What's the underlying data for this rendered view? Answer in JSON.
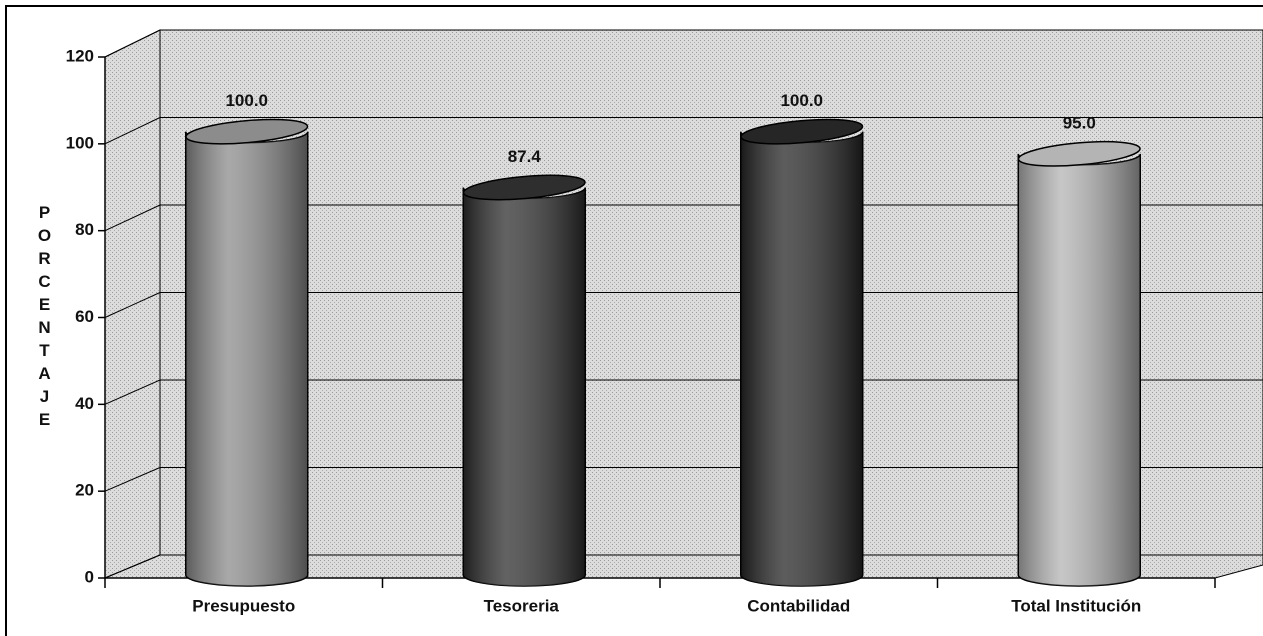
{
  "chart_data": {
    "type": "bar3d",
    "y_label": "PORCENTAJE",
    "categories": [
      "Presupuesto",
      "Tesoreria",
      "Contabilidad",
      "Total Institución"
    ],
    "series": [
      {
        "values": [
          100.0,
          87.4,
          100.0,
          95.0
        ],
        "value_labels": [
          "100.0",
          "87.4",
          "100.0",
          "95.0"
        ],
        "colors": [
          "#8c8c8c",
          "#2e2e2e",
          "#262626",
          "#b4b4b4"
        ]
      }
    ],
    "ylim": [
      0,
      120
    ],
    "yticks": [
      0,
      20,
      40,
      60,
      80,
      100,
      120
    ],
    "grid": true
  }
}
